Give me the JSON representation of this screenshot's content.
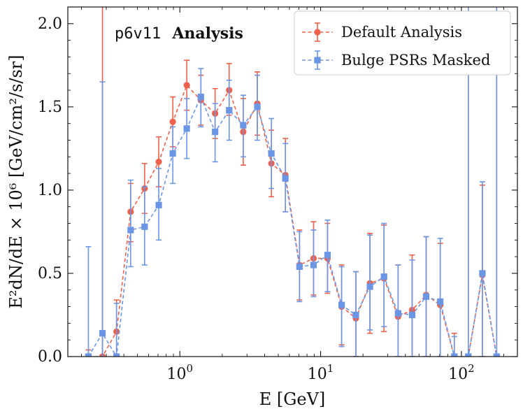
{
  "chart_data": {
    "type": "line",
    "title": "",
    "annotation": {
      "dataset": "p6v11",
      "label": "Analysis"
    },
    "xlabel": "E [GeV]",
    "ylabel": "E²dN/dE × 10⁶ [GeV/cm²/s/sr]",
    "xscale": "log",
    "xlim": [
      0.16,
      250
    ],
    "ylim": [
      0,
      2.1
    ],
    "x_ticks": [
      {
        "value": 1,
        "base": "10",
        "exp": "0"
      },
      {
        "value": 10,
        "base": "10",
        "exp": "1"
      },
      {
        "value": 100,
        "base": "10",
        "exp": "2"
      }
    ],
    "y_ticks": [
      {
        "value": 0.0,
        "label": "0.0"
      },
      {
        "value": 0.5,
        "label": "0.5"
      },
      {
        "value": 1.0,
        "label": "1.0"
      },
      {
        "value": 1.5,
        "label": "1.5"
      },
      {
        "value": 2.0,
        "label": "2.0"
      }
    ],
    "grid": false,
    "legend": {
      "position": "top-right"
    },
    "series": [
      {
        "name": "Default Analysis",
        "color": "#f0604a",
        "marker": "circle",
        "line_style": "dashed",
        "points": [
          {
            "x": 0.224,
            "y": 0.0,
            "lo": 0.0,
            "hi": 0.04
          },
          {
            "x": 0.282,
            "y": 0.0,
            "lo": 0.0,
            "hi": 2.2
          },
          {
            "x": 0.355,
            "y": 0.15,
            "lo": 0.0,
            "hi": 0.34
          },
          {
            "x": 0.447,
            "y": 0.87,
            "lo": 0.69,
            "hi": 1.04
          },
          {
            "x": 0.562,
            "y": 1.01,
            "lo": 0.86,
            "hi": 1.16
          },
          {
            "x": 0.708,
            "y": 1.17,
            "lo": 1.02,
            "hi": 1.32
          },
          {
            "x": 0.891,
            "y": 1.41,
            "lo": 1.26,
            "hi": 1.56
          },
          {
            "x": 1.12,
            "y": 1.63,
            "lo": 1.48,
            "hi": 1.78
          },
          {
            "x": 1.41,
            "y": 1.54,
            "lo": 1.39,
            "hi": 1.69
          },
          {
            "x": 1.78,
            "y": 1.46,
            "lo": 1.31,
            "hi": 1.61
          },
          {
            "x": 2.24,
            "y": 1.6,
            "lo": 1.45,
            "hi": 1.76
          },
          {
            "x": 2.82,
            "y": 1.35,
            "lo": 1.15,
            "hi": 1.55
          },
          {
            "x": 3.55,
            "y": 1.52,
            "lo": 1.33,
            "hi": 1.71
          },
          {
            "x": 4.47,
            "y": 1.16,
            "lo": 0.96,
            "hi": 1.36
          },
          {
            "x": 5.62,
            "y": 1.09,
            "lo": 0.87,
            "hi": 1.31
          },
          {
            "x": 7.08,
            "y": 0.55,
            "lo": 0.34,
            "hi": 0.76
          },
          {
            "x": 8.91,
            "y": 0.59,
            "lo": 0.37,
            "hi": 0.81
          },
          {
            "x": 11.2,
            "y": 0.59,
            "lo": 0.38,
            "hi": 0.8
          },
          {
            "x": 14.1,
            "y": 0.3,
            "lo": 0.07,
            "hi": 0.55
          },
          {
            "x": 17.8,
            "y": 0.23,
            "lo": 0.0,
            "hi": 0.51
          },
          {
            "x": 22.4,
            "y": 0.44,
            "lo": 0.14,
            "hi": 0.74
          },
          {
            "x": 28.2,
            "y": 0.47,
            "lo": 0.15,
            "hi": 0.79
          },
          {
            "x": 35.5,
            "y": 0.24,
            "lo": 0.0,
            "hi": 0.55
          },
          {
            "x": 44.7,
            "y": 0.28,
            "lo": 0.0,
            "hi": 0.61
          },
          {
            "x": 56.2,
            "y": 0.37,
            "lo": 0.0,
            "hi": 0.72
          },
          {
            "x": 70.8,
            "y": 0.31,
            "lo": 0.0,
            "hi": 0.68
          },
          {
            "x": 89.1,
            "y": 0.0,
            "lo": 0.0,
            "hi": 0.14
          },
          {
            "x": 112,
            "y": 0.0,
            "lo": 0.0,
            "hi": 2.2
          },
          {
            "x": 141,
            "y": 0.49,
            "lo": 0.0,
            "hi": 1.03
          },
          {
            "x": 178,
            "y": 0.0,
            "lo": 0.0,
            "hi": 2.2
          }
        ]
      },
      {
        "name": "Bulge PSRs Masked",
        "color": "#6b96e6",
        "marker": "square",
        "line_style": "dashed",
        "points": [
          {
            "x": 0.224,
            "y": 0.0,
            "lo": 0.0,
            "hi": 0.66
          },
          {
            "x": 0.282,
            "y": 0.14,
            "lo": 0.0,
            "hi": 1.65
          },
          {
            "x": 0.355,
            "y": 0.0,
            "lo": 0.0,
            "hi": 0.32
          },
          {
            "x": 0.447,
            "y": 0.76,
            "lo": 0.54,
            "hi": 1.06
          },
          {
            "x": 0.562,
            "y": 0.78,
            "lo": 0.55,
            "hi": 1.02
          },
          {
            "x": 0.708,
            "y": 0.91,
            "lo": 0.7,
            "hi": 1.13
          },
          {
            "x": 0.891,
            "y": 1.22,
            "lo": 1.04,
            "hi": 1.38
          },
          {
            "x": 1.12,
            "y": 1.37,
            "lo": 1.19,
            "hi": 1.55
          },
          {
            "x": 1.41,
            "y": 1.56,
            "lo": 1.38,
            "hi": 1.73
          },
          {
            "x": 1.78,
            "y": 1.35,
            "lo": 1.17,
            "hi": 1.52
          },
          {
            "x": 2.24,
            "y": 1.48,
            "lo": 1.3,
            "hi": 1.66
          },
          {
            "x": 2.82,
            "y": 1.39,
            "lo": 1.2,
            "hi": 1.57
          },
          {
            "x": 3.55,
            "y": 1.5,
            "lo": 1.3,
            "hi": 1.69
          },
          {
            "x": 4.47,
            "y": 1.22,
            "lo": 1.01,
            "hi": 1.43
          },
          {
            "x": 5.62,
            "y": 1.07,
            "lo": 0.87,
            "hi": 1.28
          },
          {
            "x": 7.08,
            "y": 0.54,
            "lo": 0.33,
            "hi": 0.75
          },
          {
            "x": 8.91,
            "y": 0.55,
            "lo": 0.36,
            "hi": 0.76
          },
          {
            "x": 11.2,
            "y": 0.61,
            "lo": 0.39,
            "hi": 0.82
          },
          {
            "x": 14.1,
            "y": 0.31,
            "lo": 0.06,
            "hi": 0.54
          },
          {
            "x": 17.8,
            "y": 0.25,
            "lo": 0.0,
            "hi": 0.51
          },
          {
            "x": 22.4,
            "y": 0.42,
            "lo": 0.16,
            "hi": 0.73
          },
          {
            "x": 28.2,
            "y": 0.48,
            "lo": 0.18,
            "hi": 0.8
          },
          {
            "x": 35.5,
            "y": 0.26,
            "lo": 0.0,
            "hi": 0.55
          },
          {
            "x": 44.7,
            "y": 0.25,
            "lo": 0.0,
            "hi": 0.58
          },
          {
            "x": 56.2,
            "y": 0.36,
            "lo": 0.0,
            "hi": 0.72
          },
          {
            "x": 70.8,
            "y": 0.33,
            "lo": 0.0,
            "hi": 0.71
          },
          {
            "x": 89.1,
            "y": 0.0,
            "lo": 0.0,
            "hi": 0.12
          },
          {
            "x": 112,
            "y": 0.0,
            "lo": 0.0,
            "hi": 2.2
          },
          {
            "x": 141,
            "y": 0.5,
            "lo": 0.0,
            "hi": 1.05
          },
          {
            "x": 178,
            "y": 0.0,
            "lo": 0.0,
            "hi": 2.2
          }
        ]
      }
    ]
  }
}
